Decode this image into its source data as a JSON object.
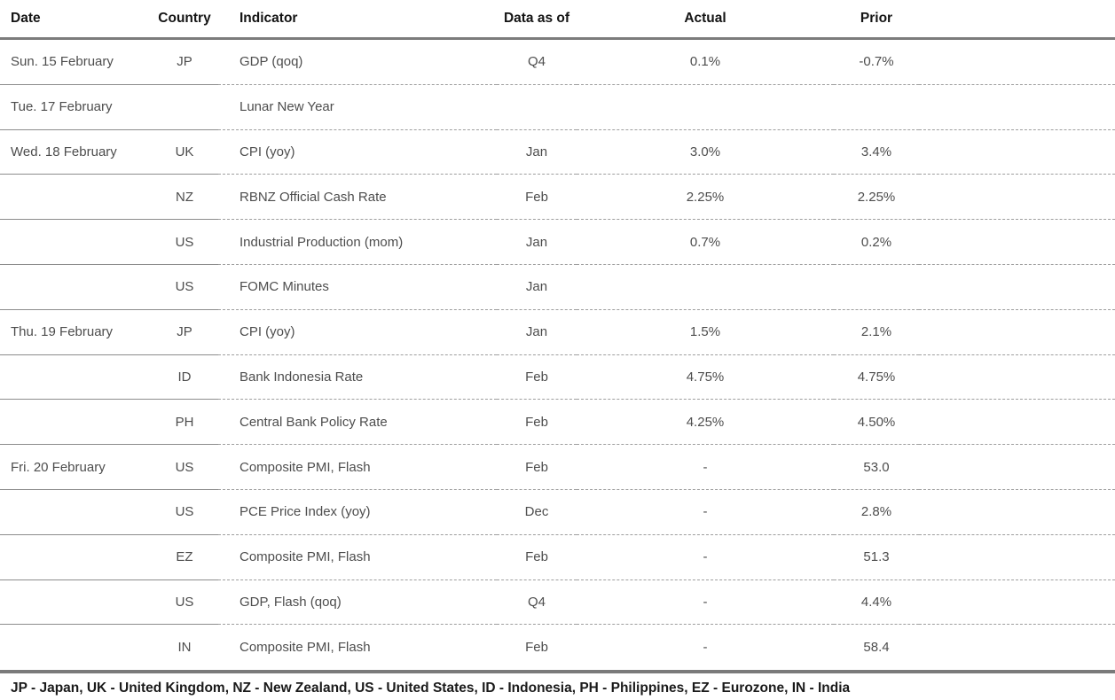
{
  "colors": {
    "background": "#ffffff",
    "header_text": "#141414",
    "cell_text": "#4d4d4d",
    "thick_border": "#7c7c7c",
    "solid_row_border": "#8c8c8c",
    "dashed_row_border": "#9e9e9e",
    "legend_text": "#1a1a1a"
  },
  "table": {
    "columns": [
      "Date",
      "Country",
      "Indicator",
      "Data as of",
      "Actual",
      "Prior"
    ],
    "rows": [
      {
        "date": "Sun. 15 February",
        "country": "JP",
        "indicator": "GDP (qoq)",
        "data_as_of": "Q4",
        "actual": "0.1%",
        "prior": "-0.7%"
      },
      {
        "date": "Tue. 17 February",
        "country": "",
        "indicator": "Lunar New Year",
        "data_as_of": "",
        "actual": "",
        "prior": ""
      },
      {
        "date": "Wed. 18 February",
        "country": "UK",
        "indicator": "CPI (yoy)",
        "data_as_of": "Jan",
        "actual": "3.0%",
        "prior": "3.4%"
      },
      {
        "date": "",
        "country": "NZ",
        "indicator": "RBNZ Official Cash Rate",
        "data_as_of": "Feb",
        "actual": "2.25%",
        "prior": "2.25%"
      },
      {
        "date": "",
        "country": "US",
        "indicator": "Industrial Production (mom)",
        "data_as_of": "Jan",
        "actual": "0.7%",
        "prior": "0.2%"
      },
      {
        "date": "",
        "country": "US",
        "indicator": "FOMC Minutes",
        "data_as_of": "Jan",
        "actual": "",
        "prior": ""
      },
      {
        "date": "Thu. 19 February",
        "country": "JP",
        "indicator": "CPI (yoy)",
        "data_as_of": "Jan",
        "actual": "1.5%",
        "prior": "2.1%"
      },
      {
        "date": "",
        "country": "ID",
        "indicator": "Bank Indonesia Rate",
        "data_as_of": "Feb",
        "actual": "4.75%",
        "prior": "4.75%"
      },
      {
        "date": "",
        "country": "PH",
        "indicator": "Central Bank Policy Rate",
        "data_as_of": "Feb",
        "actual": "4.25%",
        "prior": "4.50%"
      },
      {
        "date": "Fri. 20 February",
        "country": "US",
        "indicator": "Composite PMI, Flash",
        "data_as_of": "Feb",
        "actual": "-",
        "prior": "53.0"
      },
      {
        "date": "",
        "country": "US",
        "indicator": "PCE Price Index (yoy)",
        "data_as_of": "Dec",
        "actual": "-",
        "prior": "2.8%"
      },
      {
        "date": "",
        "country": "EZ",
        "indicator": "Composite PMI, Flash",
        "data_as_of": "Feb",
        "actual": "-",
        "prior": "51.3"
      },
      {
        "date": "",
        "country": "US",
        "indicator": "GDP, Flash (qoq)",
        "data_as_of": "Q4",
        "actual": "-",
        "prior": "4.4%"
      },
      {
        "date": "",
        "country": "IN",
        "indicator": "Composite PMI, Flash",
        "data_as_of": "Feb",
        "actual": "-",
        "prior": "58.4"
      }
    ]
  },
  "footer": {
    "legend": "JP - Japan, UK - United Kingdom, NZ - New Zealand, US - United States, ID - Indonesia, PH - Philippines, EZ - Eurozone, IN - India"
  },
  "chart_data": {
    "type": "table",
    "columns": [
      "Date",
      "Country",
      "Indicator",
      "Data as of",
      "Actual",
      "Prior"
    ],
    "rows": [
      [
        "Sun. 15 February",
        "JP",
        "GDP (qoq)",
        "Q4",
        "0.1%",
        "-0.7%"
      ],
      [
        "Tue. 17 February",
        "",
        "Lunar New Year",
        "",
        "",
        ""
      ],
      [
        "Wed. 18 February",
        "UK",
        "CPI (yoy)",
        "Jan",
        "3.0%",
        "3.4%"
      ],
      [
        "",
        "NZ",
        "RBNZ Official Cash Rate",
        "Feb",
        "2.25%",
        "2.25%"
      ],
      [
        "",
        "US",
        "Industrial Production (mom)",
        "Jan",
        "0.7%",
        "0.2%"
      ],
      [
        "",
        "US",
        "FOMC Minutes",
        "Jan",
        "",
        ""
      ],
      [
        "Thu. 19 February",
        "JP",
        "CPI (yoy)",
        "Jan",
        "1.5%",
        "2.1%"
      ],
      [
        "",
        "ID",
        "Bank Indonesia Rate",
        "Feb",
        "4.75%",
        "4.75%"
      ],
      [
        "",
        "PH",
        "Central Bank Policy Rate",
        "Feb",
        "4.25%",
        "4.50%"
      ],
      [
        "Fri. 20 February",
        "US",
        "Composite PMI, Flash",
        "Feb",
        "-",
        "53.0"
      ],
      [
        "",
        "US",
        "PCE Price Index (yoy)",
        "Dec",
        "-",
        "2.8%"
      ],
      [
        "",
        "EZ",
        "Composite PMI, Flash",
        "Feb",
        "-",
        "51.3"
      ],
      [
        "",
        "US",
        "GDP, Flash (qoq)",
        "Q4",
        "-",
        "4.4%"
      ],
      [
        "",
        "IN",
        "Composite PMI, Flash",
        "Feb",
        "-",
        "58.4"
      ]
    ],
    "legend_note": "JP - Japan, UK - United Kingdom, NZ - New Zealand, US - United States, ID - Indonesia, PH - Philippines, EZ - Eurozone, IN - India"
  }
}
